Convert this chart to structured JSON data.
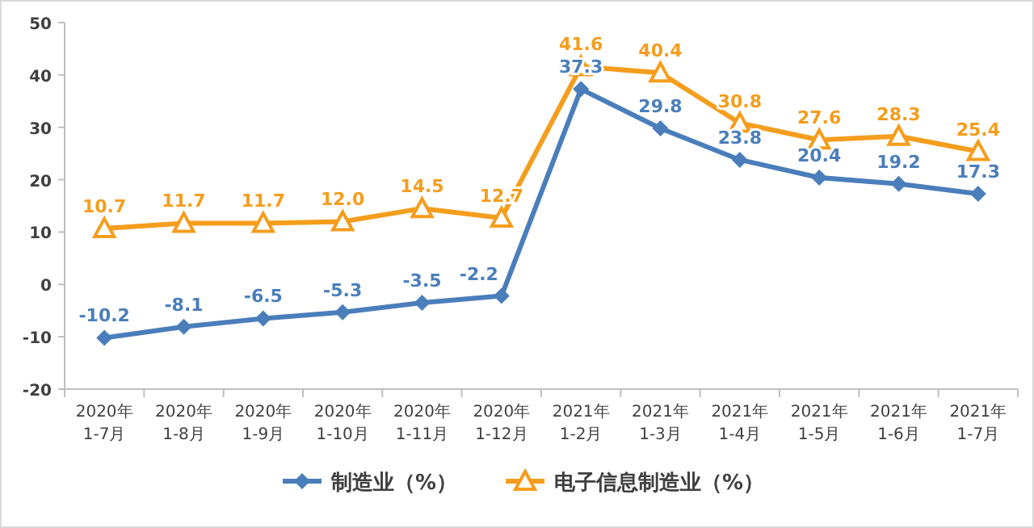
{
  "chart_data": {
    "type": "line",
    "categories": [
      "2020年 1-7月",
      "2020年 1-8月",
      "2020年 1-9月",
      "2020年 1-10月",
      "2020年 1-11月",
      "2020年 1-12月",
      "2021年 1-2月",
      "2021年 1-3月",
      "2021年 1-4月",
      "2021年 1-5月",
      "2021年 1-6月",
      "2021年 1-7月"
    ],
    "series": [
      {
        "name": "制造业（%）",
        "color": "#4a7ebb",
        "marker": "diamond",
        "values": [
          -10.2,
          -8.1,
          -6.5,
          -5.3,
          -3.5,
          -2.2,
          37.3,
          29.8,
          23.8,
          20.4,
          19.2,
          17.3
        ],
        "value_labels": [
          "-10.2",
          "-8.1",
          "-6.5",
          "-5.3",
          "-3.5",
          "-2.2",
          "37.3",
          "29.8",
          "23.8",
          "20.4",
          "19.2",
          "17.3"
        ]
      },
      {
        "name": "电子信息制造业（%）",
        "color": "#f59d1c",
        "marker": "triangle",
        "values": [
          10.7,
          11.7,
          11.7,
          12.0,
          14.5,
          12.7,
          41.6,
          40.4,
          30.8,
          27.6,
          28.3,
          25.4
        ],
        "value_labels": [
          "10.7",
          "11.7",
          "11.7",
          "12.0",
          "14.5",
          "12.7",
          "41.6",
          "40.4",
          "30.8",
          "27.6",
          "28.3",
          "25.4"
        ]
      }
    ],
    "ylim": [
      -20,
      50
    ],
    "yticks": [
      -20,
      -10,
      0,
      10,
      20,
      30,
      40,
      50
    ],
    "legend": "bottom",
    "grid": false
  }
}
